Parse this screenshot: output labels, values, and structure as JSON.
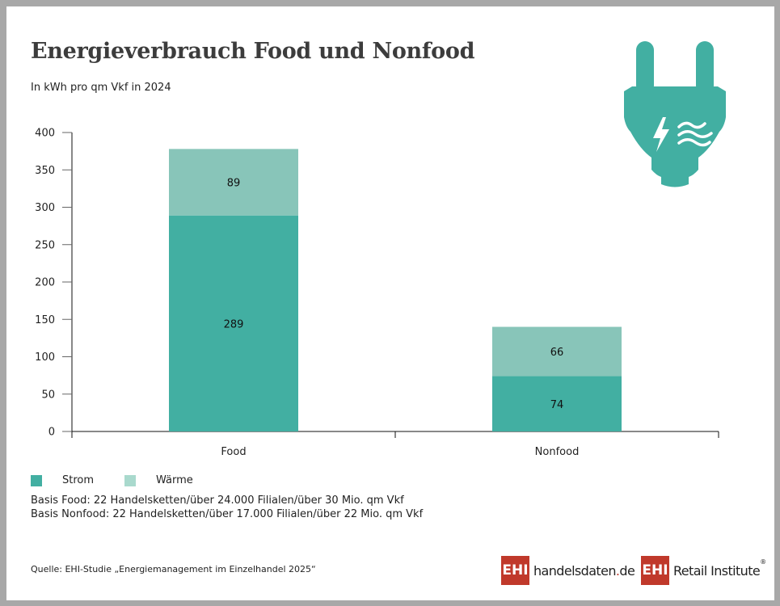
{
  "header": {
    "title": "Energieverbrauch Food und Nonfood",
    "subtitle": "In kWh pro qm Vkf in 2024"
  },
  "icon": {
    "name": "power-plug-icon",
    "glyphs": [
      "lightning-bolt",
      "heat-waves"
    ],
    "color": "#42afa2"
  },
  "colors": {
    "strom": "#42afa2",
    "waerme": "#88c5b9"
  },
  "chart_data": {
    "type": "bar",
    "stacked": true,
    "title": "Energieverbrauch Food und Nonfood",
    "subtitle": "In kWh pro qm Vkf in 2024",
    "xlabel": "",
    "ylabel": "",
    "categories": [
      "Food",
      "Nonfood"
    ],
    "series": [
      {
        "name": "Strom",
        "values": [
          289,
          74
        ],
        "color": "#42afa2"
      },
      {
        "name": "Wärme",
        "values": [
          89,
          66
        ],
        "color": "#88c5b9"
      }
    ],
    "ylim": [
      0,
      400
    ],
    "yticks": [
      0,
      50,
      100,
      150,
      200,
      250,
      300,
      350,
      400
    ],
    "ytick_labels": [
      "0",
      "50",
      "100",
      "150",
      "200",
      "250",
      "300",
      "350",
      "400"
    ],
    "grid": false,
    "legend_position": "bottom-left"
  },
  "legend": [
    {
      "label": "Strom"
    },
    {
      "label": "Wärme"
    }
  ],
  "notes": [
    "Basis Food: 22 Handelsketten/über 24.000 Filialen/über 30 Mio. qm Vkf",
    "Basis Nonfood: 22 Handelsketten/über 17.000 Filialen/über 22 Mio. qm Vkf"
  ],
  "footer": {
    "source": "Quelle: EHI-Studie „Energiemanagement im Einzelhandel 2025“",
    "logo1": {
      "box": "EHI",
      "text_main": "handelsdaten",
      "text_dot": ".",
      "text_tld": "de"
    },
    "logo2": {
      "box": "EHI",
      "text": "Retail Institute",
      "reg": "®"
    }
  }
}
